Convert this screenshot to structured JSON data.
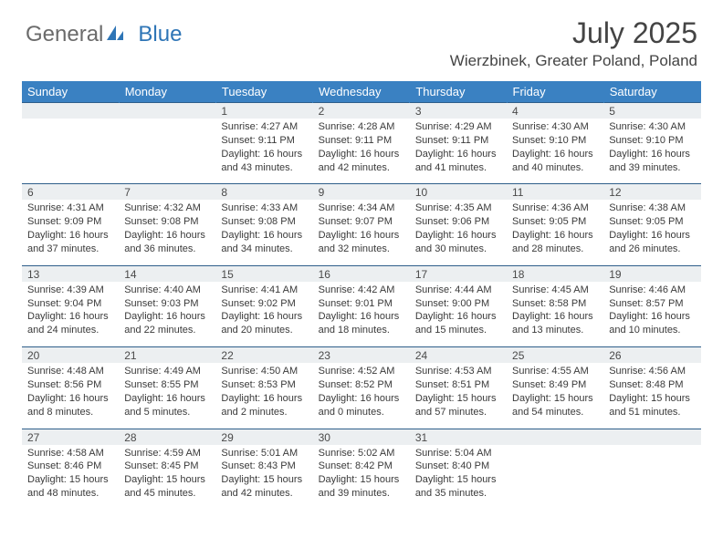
{
  "logo": {
    "general": "General",
    "blue": "Blue"
  },
  "title": "July 2025",
  "location": "Wierzbinek, Greater Poland, Poland",
  "colors": {
    "header_bg": "#3a81c2",
    "header_text": "#ffffff",
    "daynum_bg": "#eceff1",
    "border": "#2e5e8a",
    "text": "#3a3a3a",
    "title_text": "#444444",
    "logo_blue": "#2e75b6",
    "logo_gray": "#6b6b6b"
  },
  "day_headers": [
    "Sunday",
    "Monday",
    "Tuesday",
    "Wednesday",
    "Thursday",
    "Friday",
    "Saturday"
  ],
  "weeks": [
    [
      null,
      null,
      {
        "n": "1",
        "sunrise": "4:27 AM",
        "sunset": "9:11 PM",
        "dayh": "16",
        "daym": "43"
      },
      {
        "n": "2",
        "sunrise": "4:28 AM",
        "sunset": "9:11 PM",
        "dayh": "16",
        "daym": "42"
      },
      {
        "n": "3",
        "sunrise": "4:29 AM",
        "sunset": "9:11 PM",
        "dayh": "16",
        "daym": "41"
      },
      {
        "n": "4",
        "sunrise": "4:30 AM",
        "sunset": "9:10 PM",
        "dayh": "16",
        "daym": "40"
      },
      {
        "n": "5",
        "sunrise": "4:30 AM",
        "sunset": "9:10 PM",
        "dayh": "16",
        "daym": "39"
      }
    ],
    [
      {
        "n": "6",
        "sunrise": "4:31 AM",
        "sunset": "9:09 PM",
        "dayh": "16",
        "daym": "37"
      },
      {
        "n": "7",
        "sunrise": "4:32 AM",
        "sunset": "9:08 PM",
        "dayh": "16",
        "daym": "36"
      },
      {
        "n": "8",
        "sunrise": "4:33 AM",
        "sunset": "9:08 PM",
        "dayh": "16",
        "daym": "34"
      },
      {
        "n": "9",
        "sunrise": "4:34 AM",
        "sunset": "9:07 PM",
        "dayh": "16",
        "daym": "32"
      },
      {
        "n": "10",
        "sunrise": "4:35 AM",
        "sunset": "9:06 PM",
        "dayh": "16",
        "daym": "30"
      },
      {
        "n": "11",
        "sunrise": "4:36 AM",
        "sunset": "9:05 PM",
        "dayh": "16",
        "daym": "28"
      },
      {
        "n": "12",
        "sunrise": "4:38 AM",
        "sunset": "9:05 PM",
        "dayh": "16",
        "daym": "26"
      }
    ],
    [
      {
        "n": "13",
        "sunrise": "4:39 AM",
        "sunset": "9:04 PM",
        "dayh": "16",
        "daym": "24"
      },
      {
        "n": "14",
        "sunrise": "4:40 AM",
        "sunset": "9:03 PM",
        "dayh": "16",
        "daym": "22"
      },
      {
        "n": "15",
        "sunrise": "4:41 AM",
        "sunset": "9:02 PM",
        "dayh": "16",
        "daym": "20"
      },
      {
        "n": "16",
        "sunrise": "4:42 AM",
        "sunset": "9:01 PM",
        "dayh": "16",
        "daym": "18"
      },
      {
        "n": "17",
        "sunrise": "4:44 AM",
        "sunset": "9:00 PM",
        "dayh": "16",
        "daym": "15"
      },
      {
        "n": "18",
        "sunrise": "4:45 AM",
        "sunset": "8:58 PM",
        "dayh": "16",
        "daym": "13"
      },
      {
        "n": "19",
        "sunrise": "4:46 AM",
        "sunset": "8:57 PM",
        "dayh": "16",
        "daym": "10"
      }
    ],
    [
      {
        "n": "20",
        "sunrise": "4:48 AM",
        "sunset": "8:56 PM",
        "dayh": "16",
        "daym": "8"
      },
      {
        "n": "21",
        "sunrise": "4:49 AM",
        "sunset": "8:55 PM",
        "dayh": "16",
        "daym": "5"
      },
      {
        "n": "22",
        "sunrise": "4:50 AM",
        "sunset": "8:53 PM",
        "dayh": "16",
        "daym": "2"
      },
      {
        "n": "23",
        "sunrise": "4:52 AM",
        "sunset": "8:52 PM",
        "dayh": "16",
        "daym": "0"
      },
      {
        "n": "24",
        "sunrise": "4:53 AM",
        "sunset": "8:51 PM",
        "dayh": "15",
        "daym": "57"
      },
      {
        "n": "25",
        "sunrise": "4:55 AM",
        "sunset": "8:49 PM",
        "dayh": "15",
        "daym": "54"
      },
      {
        "n": "26",
        "sunrise": "4:56 AM",
        "sunset": "8:48 PM",
        "dayh": "15",
        "daym": "51"
      }
    ],
    [
      {
        "n": "27",
        "sunrise": "4:58 AM",
        "sunset": "8:46 PM",
        "dayh": "15",
        "daym": "48"
      },
      {
        "n": "28",
        "sunrise": "4:59 AM",
        "sunset": "8:45 PM",
        "dayh": "15",
        "daym": "45"
      },
      {
        "n": "29",
        "sunrise": "5:01 AM",
        "sunset": "8:43 PM",
        "dayh": "15",
        "daym": "42"
      },
      {
        "n": "30",
        "sunrise": "5:02 AM",
        "sunset": "8:42 PM",
        "dayh": "15",
        "daym": "39"
      },
      {
        "n": "31",
        "sunrise": "5:04 AM",
        "sunset": "8:40 PM",
        "dayh": "15",
        "daym": "35"
      },
      null,
      null
    ]
  ]
}
